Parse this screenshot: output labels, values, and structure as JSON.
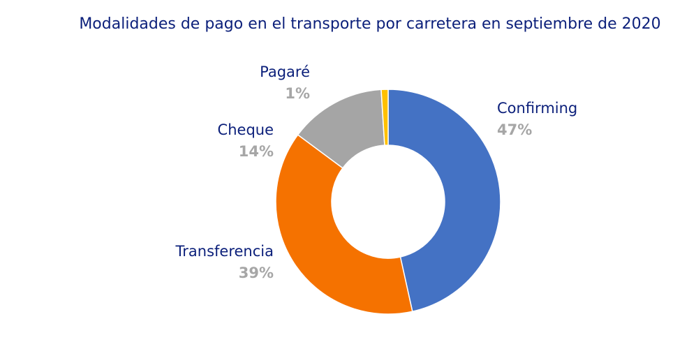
{
  "chart_data": {
    "type": "pie",
    "variant": "donut",
    "title": "Modalidades de pago en el transporte por carretera en septiembre de 2020",
    "categories": [
      "Confirming",
      "Transferencia",
      "Cheque",
      "Pagaré"
    ],
    "values": [
      47,
      39,
      14,
      1
    ],
    "labels": [
      "47%",
      "39%",
      "14%",
      "1%"
    ],
    "colors": [
      "#4472c4",
      "#f57200",
      "#a5a5a5",
      "#ffc000"
    ],
    "start": "top",
    "direction": "clockwise",
    "legend": "none"
  }
}
